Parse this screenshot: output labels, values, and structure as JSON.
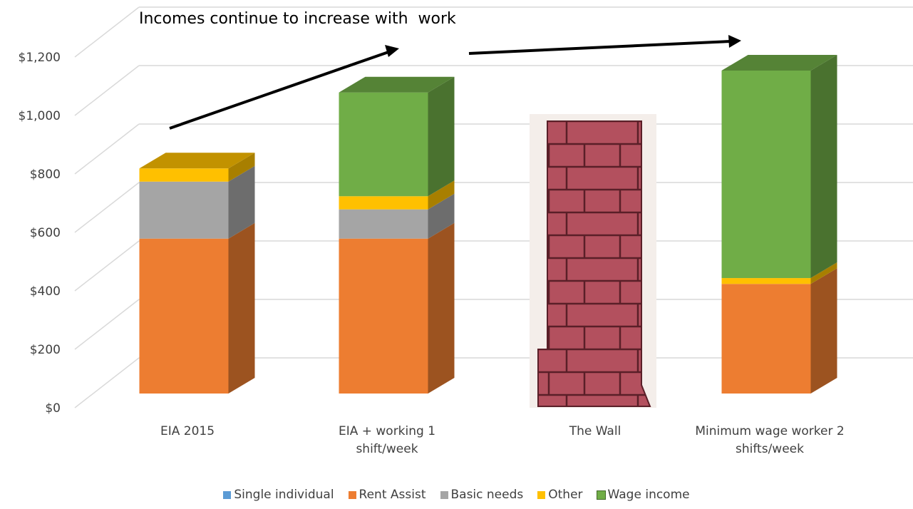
{
  "chart_data": {
    "type": "bar3d_stacked",
    "annotation": "Incomes continue to increase with  work",
    "categories": [
      "EIA 2015",
      "EIA + working 1 shift/week",
      "The Wall",
      "Minimum wage worker 2 shifts/week"
    ],
    "series": [
      {
        "name": "Single individual",
        "color": "#5b9bd5",
        "values": [
          null,
          null,
          null,
          null
        ]
      },
      {
        "name": "Rent Assist",
        "color": "#ed7d31",
        "values": [
          530,
          530,
          null,
          375
        ]
      },
      {
        "name": "Basic needs",
        "color": "#a5a5a5",
        "values": [
          195,
          100,
          null,
          null
        ]
      },
      {
        "name": "Other",
        "color": "#ffc000",
        "values": [
          45,
          45,
          null,
          20
        ]
      },
      {
        "name": "Wage income",
        "color": "#70ad47",
        "values": [
          null,
          355,
          null,
          710
        ]
      }
    ],
    "ylim": [
      0,
      1200
    ],
    "yticks": [
      {
        "value": 0,
        "label": "$0"
      },
      {
        "value": 200,
        "label": "$200"
      },
      {
        "value": 400,
        "label": "$400"
      },
      {
        "value": 600,
        "label": "$600"
      },
      {
        "value": 800,
        "label": "$800"
      },
      {
        "value": 1000,
        "label": "$1,000"
      },
      {
        "value": 1200,
        "label": "$1,200"
      }
    ],
    "grid": true
  }
}
